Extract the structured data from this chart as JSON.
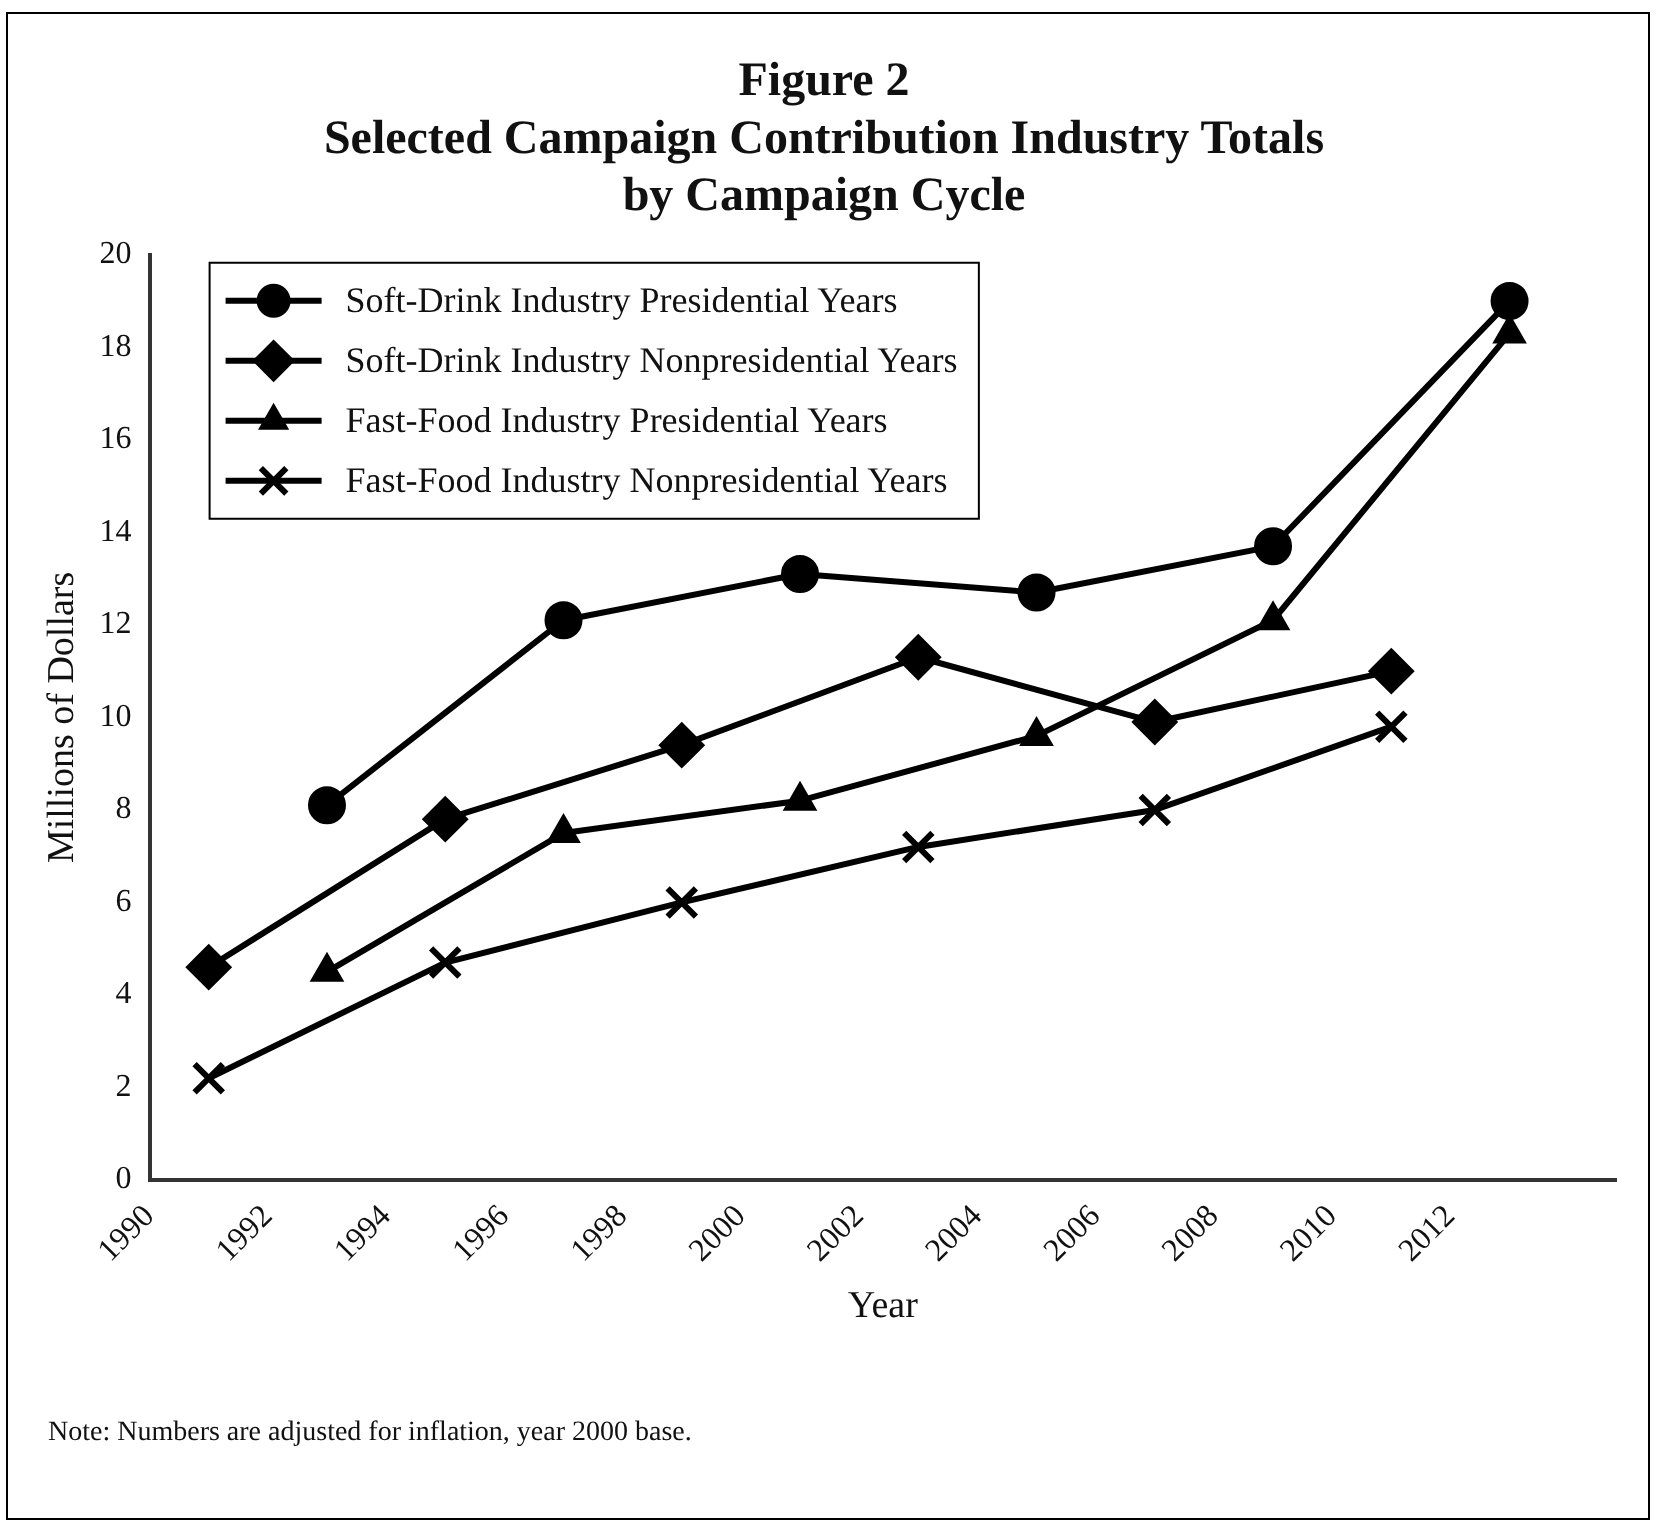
{
  "chart_data": {
    "type": "line",
    "title": "Figure 2\nSelected Campaign Contribution Industry Totals\nby Campaign Cycle",
    "xlabel": "Year",
    "ylabel": "Millions of Dollars",
    "xlim": [
      1990,
      2014.8
    ],
    "xticks": [
      1990,
      1992,
      1994,
      1996,
      1998,
      2000,
      2002,
      2004,
      2006,
      2008,
      2010,
      2012
    ],
    "ylim": [
      0,
      20
    ],
    "yticks": [
      0,
      2,
      4,
      6,
      8,
      10,
      12,
      14,
      16,
      18,
      20
    ],
    "grid": false,
    "legend": "top left",
    "line_style": "solid",
    "series": [
      {
        "name": "Soft-Drink Industry Presidential Years",
        "color": "#000000",
        "marker": "circle",
        "x": [
          1993,
          1997,
          2001,
          2005,
          2009,
          2013
        ],
        "values": [
          8.1,
          12.1,
          13.1,
          12.7,
          13.7,
          19.0
        ]
      },
      {
        "name": "Soft-Drink Industry Nonpresidential Years",
        "color": "#000000",
        "marker": "diamond",
        "x": [
          1991,
          1995,
          1999,
          2003,
          2007,
          2011
        ],
        "values": [
          4.6,
          7.8,
          9.4,
          11.3,
          9.9,
          11.0
        ]
      },
      {
        "name": "Fast-Food Industry Presidential Years",
        "color": "#000000",
        "marker": "triangle",
        "x": [
          1993,
          1997,
          2001,
          2005,
          2009,
          2013
        ],
        "values": [
          4.5,
          7.5,
          8.2,
          9.6,
          12.1,
          18.3
        ]
      },
      {
        "name": "Fast-Food Industry Nonpresidential Years",
        "color": "#000000",
        "marker": "cross",
        "x": [
          1991,
          1995,
          1999,
          2003,
          2007,
          2011
        ],
        "values": [
          2.2,
          4.7,
          6.0,
          7.2,
          8.0,
          9.8
        ]
      }
    ],
    "annotations": [
      "Note: Numbers are adjusted for inflation, year 2000 base."
    ]
  }
}
